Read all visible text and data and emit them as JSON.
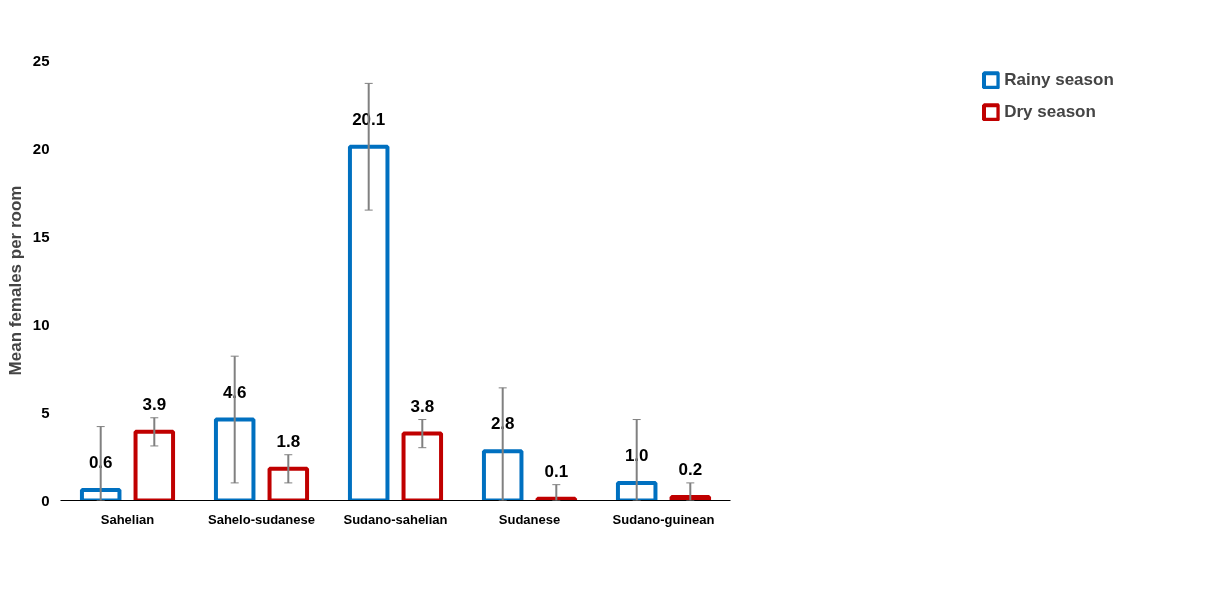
{
  "chart_data": {
    "type": "bar",
    "ylabel": "Mean females per room",
    "categories": [
      "Sahelian",
      "Sahelo-sudanese",
      "Sudano-sahelian",
      "Sudanese",
      "Sudano-guinean"
    ],
    "series": [
      {
        "name": "Rainy season",
        "color": "#0070c0",
        "values": [
          0.6,
          4.6,
          20.1,
          2.8,
          1.0
        ],
        "value_labels": [
          "0.6",
          "4.6",
          "20.1",
          "2.8",
          "1.0"
        ],
        "errors": [
          [
            0,
            4.2
          ],
          [
            1.0,
            8.2
          ],
          [
            16.5,
            23.7
          ],
          [
            0,
            6.4
          ],
          [
            0,
            4.6
          ]
        ]
      },
      {
        "name": "Dry season",
        "color": "#c00000",
        "values": [
          3.9,
          1.8,
          3.8,
          0.1,
          0.2
        ],
        "value_labels": [
          "3.9",
          "1.8",
          "3.8",
          "0.1",
          "0.2"
        ],
        "errors": [
          [
            3.1,
            4.7
          ],
          [
            1.0,
            2.6
          ],
          [
            3.0,
            4.6
          ],
          [
            0,
            0.9
          ],
          [
            0,
            1.0
          ]
        ]
      }
    ],
    "ylim": [
      0,
      25
    ],
    "yticks": [
      0,
      5,
      10,
      15,
      20,
      25
    ],
    "grid": false,
    "legend": "top right"
  }
}
